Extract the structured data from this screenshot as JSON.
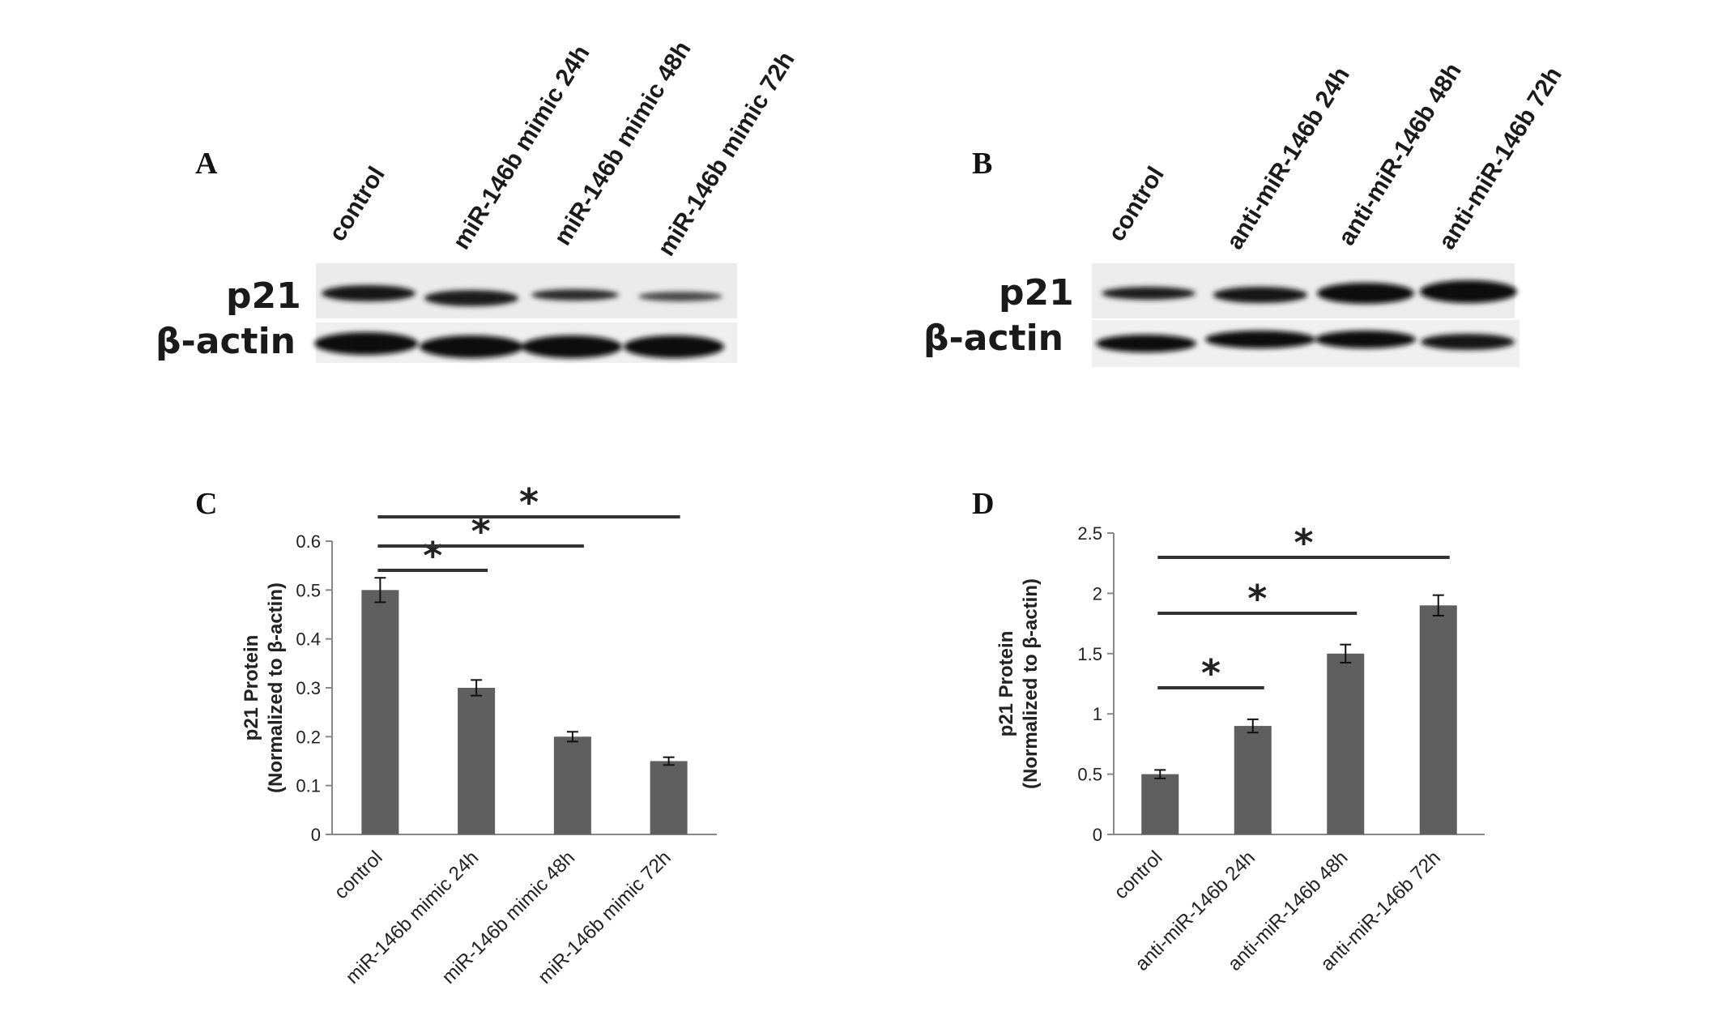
{
  "blot_a": {
    "letter": "A",
    "lanes": [
      "control",
      "miR-146b mimic 24h",
      "miR-146b mimic 48h",
      "miR-146b mimic 72h"
    ],
    "rows": [
      "p21",
      "β-actin"
    ]
  },
  "blot_b": {
    "letter": "B",
    "lanes": [
      "control",
      "anti-miR-146b 24h",
      "anti-miR-146b 48h",
      "anti-miR-146b 72h"
    ],
    "rows": [
      "p21",
      "β-actin"
    ]
  },
  "chart_data": [
    {
      "panel": "C",
      "type": "bar",
      "title": "",
      "xlabel": "",
      "ylabel": [
        "p21 Protein",
        "(Normalized to β-actin)"
      ],
      "categories": [
        "control",
        "miR-146b mimic 24h",
        "miR-146b mimic 48h",
        "miR-146b mimic 72h"
      ],
      "values": [
        0.5,
        0.3,
        0.2,
        0.15
      ],
      "errors": [
        0.025,
        0.016,
        0.01,
        0.008
      ],
      "ylim": [
        0,
        0.6
      ],
      "yticks": [
        0,
        0.1,
        0.2,
        0.3,
        0.4,
        0.5,
        0.6
      ],
      "ytick_labels": [
        "0",
        "0.1",
        "0.2",
        "0.3",
        "0.4",
        "0.5",
        "0.6"
      ],
      "bar_color": "#5f5f5f",
      "grid": false,
      "significance": [
        {
          "from": 0,
          "to": 1,
          "label": "*"
        },
        {
          "from": 0,
          "to": 2,
          "label": "*"
        },
        {
          "from": 0,
          "to": 3,
          "label": "*"
        }
      ]
    },
    {
      "panel": "D",
      "type": "bar",
      "title": "",
      "xlabel": "",
      "ylabel": [
        "p21 Protein",
        "(Normalized to β-actin)"
      ],
      "categories": [
        "control",
        "anti-miR-146b 24h",
        "anti-miR-146b 48h",
        "anti-miR-146b 72h"
      ],
      "values": [
        0.5,
        0.9,
        1.5,
        1.9
      ],
      "errors": [
        0.035,
        0.055,
        0.075,
        0.085
      ],
      "ylim": [
        0,
        2.5
      ],
      "yticks": [
        0,
        0.5,
        1,
        1.5,
        2,
        2.5
      ],
      "ytick_labels": [
        "0",
        "0.5",
        "1",
        "1.5",
        "2",
        "2.5"
      ],
      "bar_color": "#5f5f5f",
      "grid": false,
      "significance": [
        {
          "from": 0,
          "to": 1,
          "label": "*"
        },
        {
          "from": 0,
          "to": 2,
          "label": "*"
        },
        {
          "from": 0,
          "to": 3,
          "label": "*"
        }
      ]
    }
  ]
}
